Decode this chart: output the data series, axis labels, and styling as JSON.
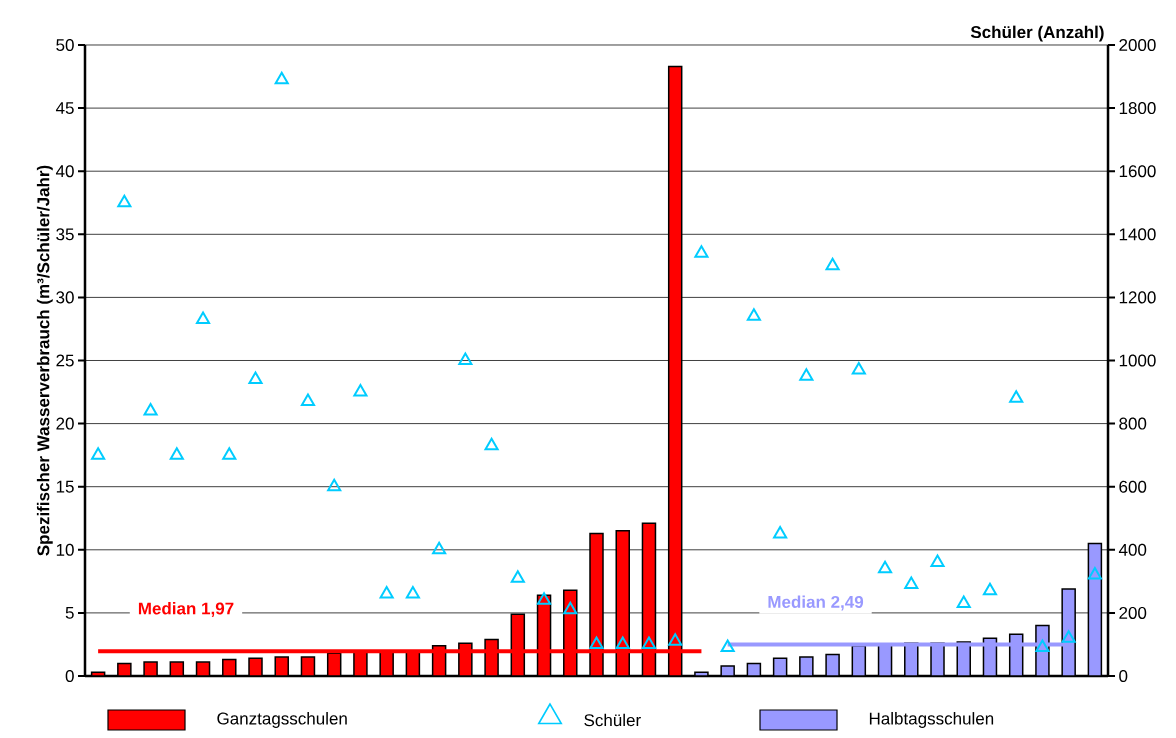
{
  "chart_data": {
    "type": "bar",
    "ylabel": "Spezifischer Wasserverbrauch (m³/Schüler/Jahr)",
    "y2label": "Schüler (Anzahl)",
    "categories": [
      null,
      null,
      null,
      null,
      null,
      null,
      null,
      null,
      null,
      null,
      null,
      null,
      null,
      null,
      null,
      null,
      null,
      null,
      null,
      null,
      null,
      null,
      null,
      null,
      null,
      null,
      null,
      null,
      null,
      null,
      null,
      null,
      null,
      null,
      null,
      null,
      null,
      null,
      null
    ],
    "series": [
      {
        "name": "Ganztagsschulen",
        "color": "#ff0000",
        "values": [
          0.3,
          1.0,
          1.1,
          1.1,
          1.1,
          1.3,
          1.4,
          1.5,
          1.5,
          1.8,
          1.9,
          2.0,
          2.0,
          2.4,
          2.6,
          2.9,
          4.9,
          6.4,
          6.8,
          11.3,
          11.5,
          12.1,
          48.3,
          null,
          null,
          null,
          null,
          null,
          null,
          null,
          null,
          null,
          null,
          null,
          null,
          null,
          null,
          null,
          null
        ]
      },
      {
        "name": "Schüler",
        "type": "scatter",
        "axis": "y2",
        "color": "#00ccff",
        "marker": "triangle",
        "values": [
          700,
          1500,
          840,
          700,
          1130,
          700,
          940,
          1890,
          870,
          600,
          900,
          260,
          260,
          400,
          1000,
          730,
          310,
          240,
          210,
          100,
          100,
          100,
          110,
          1340,
          90,
          1140,
          450,
          950,
          1300,
          970,
          340,
          290,
          360,
          230,
          270,
          880,
          90,
          120,
          320
        ]
      },
      {
        "name": "Halbtagsschulen",
        "color": "#9999ff",
        "values": [
          null,
          null,
          null,
          null,
          null,
          null,
          null,
          null,
          null,
          null,
          null,
          null,
          null,
          null,
          null,
          null,
          null,
          null,
          null,
          null,
          null,
          null,
          null,
          0.3,
          0.8,
          1.0,
          1.4,
          1.5,
          1.7,
          2.4,
          2.5,
          2.6,
          2.6,
          2.7,
          3.0,
          3.3,
          4.0,
          6.9,
          10.5
        ]
      },
      {
        "name": "Median 1,97",
        "type": "line",
        "color": "#ff0000",
        "values": [
          1.97,
          1.97,
          1.97,
          1.97,
          1.97,
          1.97,
          1.97,
          1.97,
          1.97,
          1.97,
          1.97,
          1.97,
          1.97,
          1.97,
          1.97,
          1.97,
          1.97,
          1.97,
          1.97,
          1.97,
          1.97,
          1.97,
          1.97,
          1.97,
          null,
          null,
          null,
          null,
          null,
          null,
          null,
          null,
          null,
          null,
          null,
          null,
          null,
          null,
          null
        ]
      },
      {
        "name": "Median 2,49",
        "type": "line",
        "color": "#9999ff",
        "values": [
          null,
          null,
          null,
          null,
          null,
          null,
          null,
          null,
          null,
          null,
          null,
          null,
          null,
          null,
          null,
          null,
          null,
          null,
          null,
          null,
          null,
          null,
          null,
          null,
          2.49,
          2.49,
          2.49,
          2.49,
          2.49,
          2.49,
          2.49,
          2.49,
          2.49,
          2.49,
          2.49,
          2.49,
          2.49,
          2.49,
          null
        ]
      }
    ],
    "ylim": [
      0,
      50
    ],
    "yticks": [
      0,
      5,
      10,
      15,
      20,
      25,
      30,
      35,
      40,
      45,
      50
    ],
    "y2lim": [
      0,
      2000
    ],
    "y2ticks": [
      0,
      200,
      400,
      600,
      800,
      1000,
      1200,
      1400,
      1600,
      1800,
      2000
    ],
    "grid": "y",
    "legend": "bottom",
    "line_style": "solid"
  }
}
